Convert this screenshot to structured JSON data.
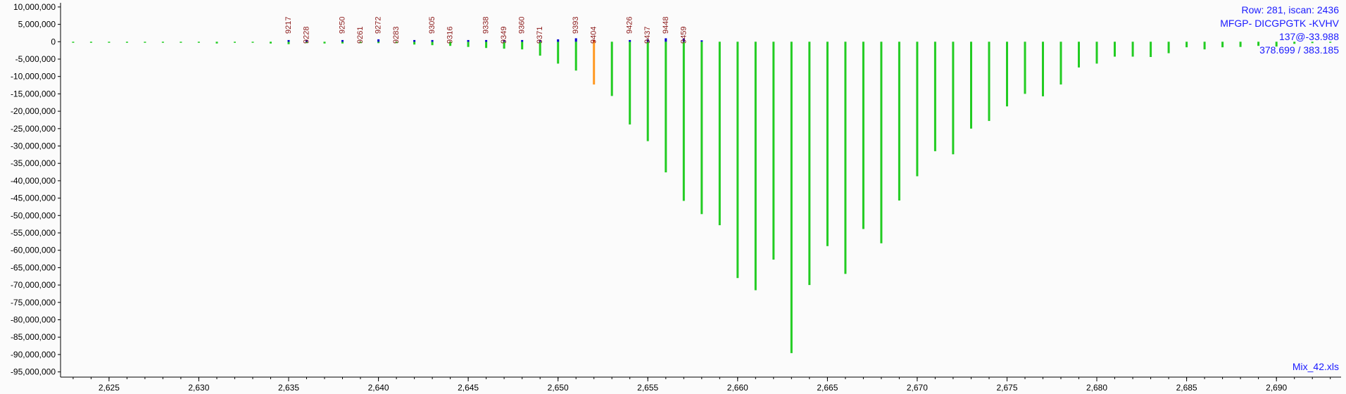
{
  "colors": {
    "background": "#fbfbfb",
    "bar": "#22cc22",
    "highlight_bar": "#ff9922",
    "positive_marker": "#0000cc",
    "scan_label": "#8b1a1a",
    "info_text": "#1a1aff",
    "axis": "#000000"
  },
  "info": {
    "row": "Row: 281, iscan: 2436",
    "peptide": "MFGP- DICGPGTK -KVHV",
    "charge_rt": "137@-33.988",
    "mz": "378.699 / 383.185",
    "file": "Mix_42.xls"
  },
  "chart_data": {
    "type": "bar",
    "xlabel": "",
    "ylabel": "",
    "xlim": [
      2622.3,
      2693.6
    ],
    "ylim": [
      -96500000,
      11200000
    ],
    "y_ticks": [
      10000000,
      5000000,
      0,
      -5000000,
      -10000000,
      -15000000,
      -20000000,
      -25000000,
      -30000000,
      -35000000,
      -40000000,
      -45000000,
      -50000000,
      -55000000,
      -60000000,
      -65000000,
      -70000000,
      -75000000,
      -80000000,
      -85000000,
      -90000000,
      -95000000
    ],
    "y_tick_labels": [
      "10,000,000",
      "5,000,000",
      "0",
      "-5,000,000",
      "-10,000,000",
      "-15,000,000",
      "-20,000,000",
      "-25,000,000",
      "-30,000,000",
      "-35,000,000",
      "-40,000,000",
      "-45,000,000",
      "-50,000,000",
      "-55,000,000",
      "-60,000,000",
      "-65,000,000",
      "-70,000,000",
      "-75,000,000",
      "-80,000,000",
      "-85,000,000",
      "-90,000,000",
      "-95,000,000"
    ],
    "x_ticks": [
      2625,
      2630,
      2635,
      2640,
      2645,
      2650,
      2655,
      2660,
      2665,
      2670,
      2675,
      2680,
      2685,
      2690
    ],
    "x_tick_labels": [
      "2,625",
      "2,630",
      "2,635",
      "2,640",
      "2,645",
      "2,650",
      "2,655",
      "2,660",
      "2,665",
      "2,670",
      "2,675",
      "2,680",
      "2,685",
      "2,690"
    ],
    "grid": false,
    "highlight_x": 2652,
    "bars": [
      {
        "x": 2622,
        "y": -150000
      },
      {
        "x": 2623,
        "y": -150000
      },
      {
        "x": 2624,
        "y": -150000
      },
      {
        "x": 2625,
        "y": -150000
      },
      {
        "x": 2626,
        "y": -150000
      },
      {
        "x": 2627,
        "y": -150000
      },
      {
        "x": 2628,
        "y": -150000
      },
      {
        "x": 2629,
        "y": -200000
      },
      {
        "x": 2630,
        "y": -200000
      },
      {
        "x": 2631,
        "y": -500000
      },
      {
        "x": 2632,
        "y": -300000
      },
      {
        "x": 2633,
        "y": -300000
      },
      {
        "x": 2634,
        "y": -500000
      },
      {
        "x": 2635,
        "y": -700000
      },
      {
        "x": 2636,
        "y": -400000
      },
      {
        "x": 2637,
        "y": -500000
      },
      {
        "x": 2638,
        "y": -500000
      },
      {
        "x": 2639,
        "y": -400000
      },
      {
        "x": 2640,
        "y": -400000
      },
      {
        "x": 2641,
        "y": -400000
      },
      {
        "x": 2642,
        "y": -800000
      },
      {
        "x": 2643,
        "y": -1000000
      },
      {
        "x": 2644,
        "y": -1200000
      },
      {
        "x": 2645,
        "y": -1500000
      },
      {
        "x": 2646,
        "y": -1800000
      },
      {
        "x": 2647,
        "y": -2000000
      },
      {
        "x": 2648,
        "y": -2200000
      },
      {
        "x": 2649,
        "y": -4000000
      },
      {
        "x": 2650,
        "y": -6300000
      },
      {
        "x": 2651,
        "y": -8300000
      },
      {
        "x": 2652,
        "y": -12300000
      },
      {
        "x": 2653,
        "y": -15600000
      },
      {
        "x": 2654,
        "y": -23800000
      },
      {
        "x": 2655,
        "y": -28600000
      },
      {
        "x": 2656,
        "y": -37600000
      },
      {
        "x": 2657,
        "y": -45800000
      },
      {
        "x": 2658,
        "y": -49600000
      },
      {
        "x": 2659,
        "y": -52800000
      },
      {
        "x": 2660,
        "y": -68000000
      },
      {
        "x": 2661,
        "y": -71500000
      },
      {
        "x": 2662,
        "y": -62700000
      },
      {
        "x": 2663,
        "y": -89600000
      },
      {
        "x": 2664,
        "y": -70000000
      },
      {
        "x": 2665,
        "y": -58800000
      },
      {
        "x": 2666,
        "y": -66800000
      },
      {
        "x": 2667,
        "y": -53900000
      },
      {
        "x": 2668,
        "y": -58000000
      },
      {
        "x": 2669,
        "y": -45700000
      },
      {
        "x": 2670,
        "y": -38700000
      },
      {
        "x": 2671,
        "y": -31500000
      },
      {
        "x": 2672,
        "y": -32400000
      },
      {
        "x": 2673,
        "y": -25000000
      },
      {
        "x": 2674,
        "y": -22800000
      },
      {
        "x": 2675,
        "y": -18600000
      },
      {
        "x": 2676,
        "y": -15000000
      },
      {
        "x": 2677,
        "y": -15700000
      },
      {
        "x": 2678,
        "y": -12300000
      },
      {
        "x": 2679,
        "y": -7400000
      },
      {
        "x": 2680,
        "y": -6300000
      },
      {
        "x": 2681,
        "y": -4300000
      },
      {
        "x": 2682,
        "y": -4300000
      },
      {
        "x": 2683,
        "y": -4400000
      },
      {
        "x": 2684,
        "y": -3300000
      },
      {
        "x": 2685,
        "y": -1600000
      },
      {
        "x": 2686,
        "y": -2200000
      },
      {
        "x": 2687,
        "y": -1600000
      },
      {
        "x": 2688,
        "y": -1500000
      },
      {
        "x": 2689,
        "y": -1200000
      },
      {
        "x": 2690,
        "y": -1400000
      },
      {
        "x": 2691,
        "y": -600000
      },
      {
        "x": 2692,
        "y": -400000
      },
      {
        "x": 2693,
        "y": -200000
      }
    ],
    "positive_marks": [
      {
        "x": 2635,
        "y": 500000
      },
      {
        "x": 2636,
        "y": 500000
      },
      {
        "x": 2638,
        "y": 500000
      },
      {
        "x": 2640,
        "y": 700000
      },
      {
        "x": 2642,
        "y": 500000
      },
      {
        "x": 2643,
        "y": 500000
      },
      {
        "x": 2645,
        "y": 500000
      },
      {
        "x": 2646,
        "y": 500000
      },
      {
        "x": 2647,
        "y": 400000
      },
      {
        "x": 2648,
        "y": 500000
      },
      {
        "x": 2649,
        "y": 400000
      },
      {
        "x": 2650,
        "y": 700000
      },
      {
        "x": 2651,
        "y": 1000000
      },
      {
        "x": 2652,
        "y": 500000
      },
      {
        "x": 2654,
        "y": 500000
      },
      {
        "x": 2655,
        "y": 700000
      },
      {
        "x": 2656,
        "y": 1000000
      },
      {
        "x": 2657,
        "y": 900000
      },
      {
        "x": 2658,
        "y": 400000
      }
    ],
    "scan_labels": [
      {
        "x": 2635,
        "text": "9217"
      },
      {
        "x": 2636,
        "text": "9228"
      },
      {
        "x": 2638,
        "text": "9250"
      },
      {
        "x": 2639,
        "text": "9261"
      },
      {
        "x": 2640,
        "text": "9272"
      },
      {
        "x": 2641,
        "text": "9283"
      },
      {
        "x": 2643,
        "text": "9305"
      },
      {
        "x": 2644,
        "text": "9316"
      },
      {
        "x": 2646,
        "text": "9338"
      },
      {
        "x": 2647,
        "text": "9349"
      },
      {
        "x": 2648,
        "text": "9360"
      },
      {
        "x": 2649,
        "text": "9371"
      },
      {
        "x": 2651,
        "text": "9393"
      },
      {
        "x": 2652,
        "text": "9404"
      },
      {
        "x": 2654,
        "text": "9426"
      },
      {
        "x": 2655,
        "text": "9437"
      },
      {
        "x": 2656,
        "text": "9448"
      },
      {
        "x": 2657,
        "text": "9459"
      }
    ]
  }
}
